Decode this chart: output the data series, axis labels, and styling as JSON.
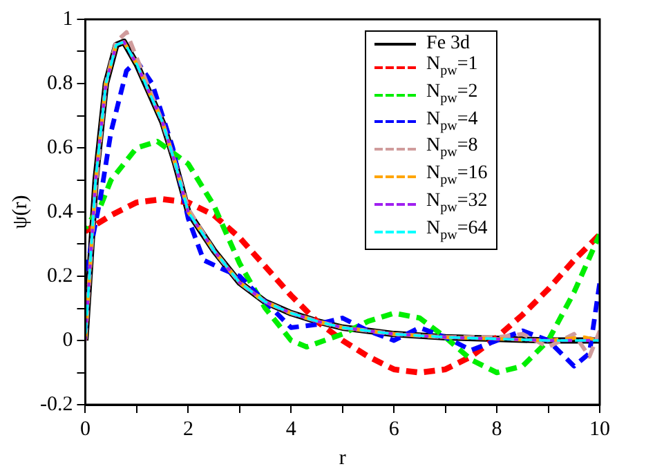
{
  "chart_data": {
    "type": "line",
    "xlabel": "r",
    "ylabel": "ψ(r)",
    "xlim": [
      0,
      10
    ],
    "xticks": [
      0,
      {
        "value": 1,
        "label": null
      },
      2,
      {
        "value": 3,
        "label": null
      },
      4,
      {
        "value": 5,
        "label": null
      },
      6,
      {
        "value": 7,
        "label": null
      },
      8,
      {
        "value": 9,
        "label": null
      },
      10
    ],
    "ylim": [
      -0.2,
      1
    ],
    "yticks": [
      -0.2,
      {
        "value": -0.1,
        "label": null
      },
      0,
      {
        "value": 0.1,
        "label": null
      },
      0.2,
      {
        "value": 0.3,
        "label": null
      },
      0.4,
      {
        "value": 0.5,
        "label": null
      },
      0.6,
      {
        "value": 0.7,
        "label": null
      },
      0.8,
      {
        "value": 0.9,
        "label": null
      },
      1
    ],
    "grid": false,
    "legend": "top right",
    "marker": "none",
    "series": [
      {
        "name": "Fe 3d",
        "color": "#000000",
        "line_style": "solid",
        "x": [
          0,
          0.2,
          0.4,
          0.6,
          0.75,
          1,
          1.25,
          1.5,
          1.75,
          2,
          2.5,
          3,
          3.5,
          4,
          4.5,
          5,
          6,
          7,
          8,
          9,
          10
        ],
        "values": [
          0,
          0.5,
          0.8,
          0.92,
          0.93,
          0.86,
          0.77,
          0.68,
          0.55,
          0.4,
          0.28,
          0.18,
          0.12,
          0.085,
          0.06,
          0.04,
          0.02,
          0.01,
          0.005,
          0,
          0
        ]
      },
      {
        "name": "N$_{pw}$=1",
        "color": "#ff0000",
        "line_style": "dashed",
        "x": [
          0,
          0.5,
          1,
          1.5,
          2,
          2.5,
          3,
          3.5,
          4,
          4.5,
          5,
          5.5,
          6,
          6.5,
          7,
          7.5,
          8,
          8.5,
          9,
          9.5,
          10
        ],
        "values": [
          0.34,
          0.39,
          0.43,
          0.44,
          0.43,
          0.39,
          0.32,
          0.23,
          0.14,
          0.06,
          0,
          -0.05,
          -0.09,
          -0.1,
          -0.09,
          -0.05,
          0.01,
          0.08,
          0.16,
          0.25,
          0.33
        ]
      },
      {
        "name": "N$_{pw}$=2",
        "color": "#00ee00",
        "line_style": "dashed",
        "x": [
          0,
          0.3,
          0.5,
          1,
          1.4,
          2,
          2.5,
          3,
          3.5,
          4,
          4.3,
          5,
          5.5,
          6,
          6.5,
          7,
          7.5,
          8,
          8.5,
          9,
          9.5,
          10
        ],
        "values": [
          0.35,
          0.42,
          0.5,
          0.6,
          0.62,
          0.55,
          0.42,
          0.24,
          0.1,
          0,
          -0.02,
          0.02,
          0.06,
          0.085,
          0.07,
          0.01,
          -0.06,
          -0.1,
          -0.08,
          0,
          0.15,
          0.33
        ]
      },
      {
        "name": "N$_{pw}$=4",
        "color": "#0000ff",
        "line_style": "dashed",
        "x": [
          0,
          0.3,
          0.5,
          0.8,
          1,
          1.3,
          1.7,
          2,
          2.3,
          2.7,
          3,
          3.5,
          4,
          4.5,
          5,
          5.5,
          6,
          6.5,
          7,
          7.5,
          8,
          8.5,
          9,
          9.5,
          9.8,
          10
        ],
        "values": [
          0.2,
          0.45,
          0.65,
          0.84,
          0.87,
          0.8,
          0.6,
          0.38,
          0.25,
          0.22,
          0.2,
          0.12,
          0.04,
          0.05,
          0.07,
          0.03,
          0,
          0.04,
          0.01,
          -0.03,
          0,
          0.03,
          0,
          -0.08,
          -0.04,
          0.18
        ]
      },
      {
        "name": "N$_{pw}$=8",
        "color": "#d09c9c",
        "line_style": "dashed",
        "x": [
          0,
          0.2,
          0.4,
          0.6,
          0.8,
          1,
          1.25,
          1.5,
          1.75,
          2,
          2.5,
          3,
          3.5,
          4,
          4.5,
          5,
          6,
          7,
          8,
          8.5,
          9,
          9.5,
          9.8,
          10
        ],
        "values": [
          0,
          0.48,
          0.8,
          0.93,
          0.96,
          0.88,
          0.78,
          0.68,
          0.55,
          0.41,
          0.28,
          0.18,
          0.12,
          0.085,
          0.06,
          0.04,
          0.02,
          0.01,
          0.01,
          0.02,
          -0.02,
          0.02,
          -0.05,
          0.03
        ]
      },
      {
        "name": "N$_{pw}$=16",
        "color": "#ffa500",
        "line_style": "dashed",
        "x": [
          0,
          0.2,
          0.4,
          0.6,
          0.75,
          1,
          1.25,
          1.5,
          1.75,
          2,
          2.5,
          3,
          3.5,
          4,
          4.5,
          5,
          6,
          7,
          8,
          9,
          9.7,
          10
        ],
        "values": [
          0,
          0.5,
          0.8,
          0.92,
          0.93,
          0.86,
          0.77,
          0.68,
          0.55,
          0.4,
          0.28,
          0.18,
          0.12,
          0.085,
          0.06,
          0.04,
          0.02,
          0.01,
          0.005,
          0,
          0.01,
          0
        ]
      },
      {
        "name": "N$_{pw}$=32",
        "color": "#a020f0",
        "line_style": "dashed",
        "x": [
          0,
          0.2,
          0.4,
          0.6,
          0.75,
          1,
          1.25,
          1.5,
          1.75,
          2,
          2.5,
          3,
          3.5,
          4,
          4.5,
          5,
          6,
          7,
          8,
          9,
          10
        ],
        "values": [
          0,
          0.5,
          0.8,
          0.92,
          0.93,
          0.86,
          0.77,
          0.68,
          0.55,
          0.4,
          0.28,
          0.18,
          0.12,
          0.085,
          0.06,
          0.04,
          0.02,
          0.01,
          0.005,
          0,
          0
        ]
      },
      {
        "name": "N$_{pw}$=64",
        "color": "#00ffff",
        "line_style": "dashed",
        "x": [
          0,
          0.2,
          0.4,
          0.6,
          0.75,
          1,
          1.25,
          1.5,
          1.75,
          2,
          2.5,
          3,
          3.5,
          4,
          4.5,
          5,
          6,
          7,
          8,
          9,
          10
        ],
        "values": [
          0,
          0.5,
          0.8,
          0.92,
          0.93,
          0.86,
          0.77,
          0.68,
          0.55,
          0.4,
          0.28,
          0.18,
          0.12,
          0.085,
          0.06,
          0.04,
          0.02,
          0.01,
          0.005,
          0,
          0
        ]
      }
    ]
  }
}
